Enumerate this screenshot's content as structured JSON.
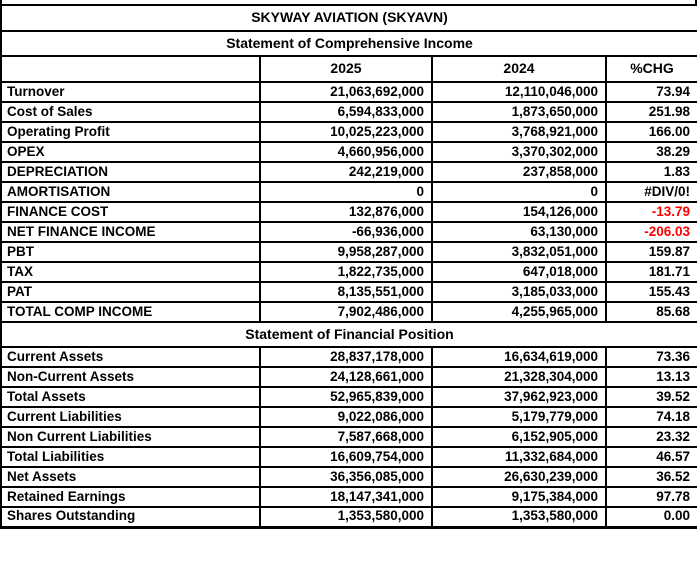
{
  "title": "SKYWAY AVIATION (SKYAVN)",
  "columns": [
    "",
    "2025",
    "2024",
    "%CHG"
  ],
  "colors": {
    "negative": "#ff0000",
    "text": "#000000",
    "border": "#000000"
  },
  "sections": [
    {
      "heading": "Statement of Comprehensive Income",
      "rows": [
        {
          "label": "Turnover",
          "y2025": "21,063,692,000",
          "y2024": "12,110,046,000",
          "chg": "73.94"
        },
        {
          "label": "Cost of Sales",
          "y2025": "6,594,833,000",
          "y2024": "1,873,650,000",
          "chg": "251.98"
        },
        {
          "label": "Operating Profit",
          "y2025": "10,025,223,000",
          "y2024": "3,768,921,000",
          "chg": "166.00"
        },
        {
          "label": "OPEX",
          "y2025": "4,660,956,000",
          "y2024": "3,370,302,000",
          "chg": "38.29"
        },
        {
          "label": "DEPRECIATION",
          "y2025": "242,219,000",
          "y2024": "237,858,000",
          "chg": "1.83"
        },
        {
          "label": "AMORTISATION",
          "y2025": "0",
          "y2024": "0",
          "chg": "#DIV/0!"
        },
        {
          "label": "FINANCE COST",
          "y2025": "132,876,000",
          "y2024": "154,126,000",
          "chg": "-13.79",
          "chg_red": true
        },
        {
          "label": "NET FINANCE INCOME",
          "y2025": "-66,936,000",
          "y2024": "63,130,000",
          "chg": "-206.03",
          "chg_red": true
        },
        {
          "label": "PBT",
          "y2025": "9,958,287,000",
          "y2024": "3,832,051,000",
          "chg": "159.87"
        },
        {
          "label": "TAX",
          "y2025": "1,822,735,000",
          "y2024": "647,018,000",
          "chg": "181.71"
        },
        {
          "label": "PAT",
          "y2025": "8,135,551,000",
          "y2024": "3,185,033,000",
          "chg": "155.43"
        },
        {
          "label": "TOTAL COMP INCOME",
          "y2025": "7,902,486,000",
          "y2024": "4,255,965,000",
          "chg": "85.68"
        }
      ]
    },
    {
      "heading": "Statement of Financial Position",
      "rows": [
        {
          "label": "Current Assets",
          "y2025": "28,837,178,000",
          "y2024": "16,634,619,000",
          "chg": "73.36"
        },
        {
          "label": "Non-Current Assets",
          "y2025": "24,128,661,000",
          "y2024": "21,328,304,000",
          "chg": "13.13"
        },
        {
          "label": "Total Assets",
          "y2025": "52,965,839,000",
          "y2024": "37,962,923,000",
          "chg": "39.52"
        },
        {
          "label": "Current Liabilities",
          "y2025": "9,022,086,000",
          "y2024": "5,179,779,000",
          "chg": "74.18"
        },
        {
          "label": "Non Current Liabilities",
          "y2025": "7,587,668,000",
          "y2024": "6,152,905,000",
          "chg": "23.32"
        },
        {
          "label": "Total Liabilities",
          "y2025": "16,609,754,000",
          "y2024": "11,332,684,000",
          "chg": "46.57"
        },
        {
          "label": "Net Assets",
          "y2025": "36,356,085,000",
          "y2024": "26,630,239,000",
          "chg": "36.52"
        },
        {
          "label": "Retained Earnings",
          "y2025": "18,147,341,000",
          "y2024": "9,175,384,000",
          "chg": "97.78"
        },
        {
          "label": "Shares Outstanding",
          "y2025": "1,353,580,000",
          "y2024": "1,353,580,000",
          "chg": "0.00"
        }
      ]
    }
  ]
}
